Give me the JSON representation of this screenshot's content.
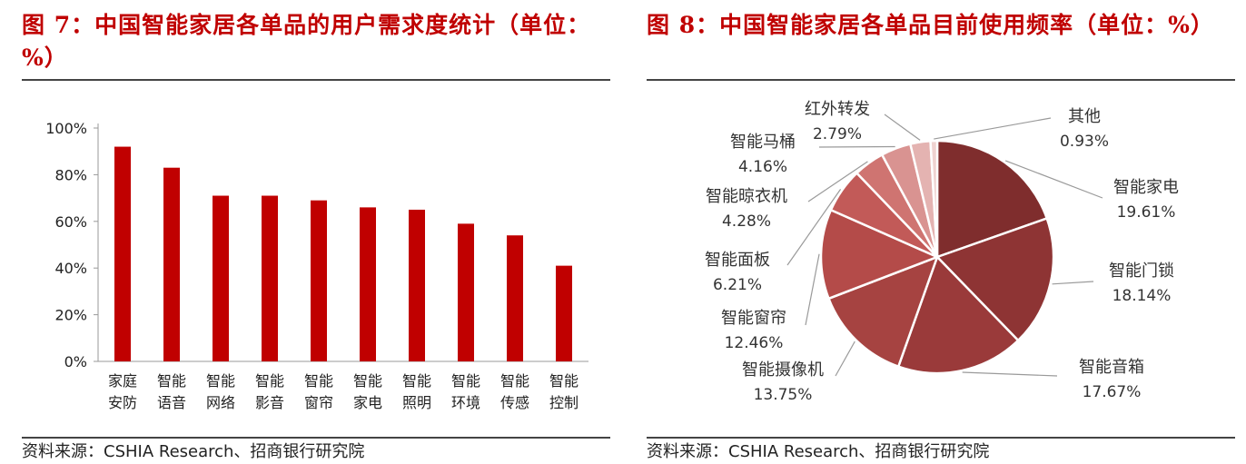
{
  "charts": {
    "left": {
      "title": "图 7：中国智能家居各单品的用户需求度统计（单位：%）",
      "source": "资料来源：CSHIA Research、招商银行研究院"
    },
    "right": {
      "title": "图 8：中国智能家居各单品目前使用频率（单位：%）",
      "source": "资料来源：CSHIA Research、招商银行研究院"
    }
  },
  "chart_data": [
    {
      "type": "bar",
      "title": "图 7：中国智能家居各单品的用户需求度统计（单位：%）",
      "categories": [
        [
          "家庭",
          "安防"
        ],
        [
          "智能",
          "语音"
        ],
        [
          "智能",
          "网络"
        ],
        [
          "智能",
          "影音"
        ],
        [
          "智能",
          "窗帘"
        ],
        [
          "智能",
          "家电"
        ],
        [
          "智能",
          "照明"
        ],
        [
          "智能",
          "环境"
        ],
        [
          "智能",
          "传感"
        ],
        [
          "智能",
          "控制"
        ]
      ],
      "values": [
        92,
        83,
        71,
        71,
        69,
        66,
        65,
        59,
        54,
        41
      ],
      "ylim": [
        0,
        100
      ],
      "yticks": [
        "0%",
        "20%",
        "40%",
        "60%",
        "80%",
        "100%"
      ],
      "ytick_values": [
        0,
        20,
        40,
        60,
        80,
        100
      ],
      "bar_color": "#c00000",
      "grid": false,
      "xlabel": "",
      "ylabel": ""
    },
    {
      "type": "pie",
      "title": "图 8：中国智能家居各单品目前使用频率（单位：%）",
      "slices": [
        {
          "label": "智能家电",
          "value": 19.61,
          "text": "19.61%",
          "color": "#7f2d2d"
        },
        {
          "label": "智能门锁",
          "value": 18.14,
          "text": "18.14%",
          "color": "#8e3434"
        },
        {
          "label": "智能音箱",
          "value": 17.67,
          "text": "17.67%",
          "color": "#9a3a3a"
        },
        {
          "label": "智能摄像机",
          "value": 13.75,
          "text": "13.75%",
          "color": "#a64341"
        },
        {
          "label": "智能窗帘",
          "value": 12.46,
          "text": "12.46%",
          "color": "#b44b49"
        },
        {
          "label": "智能面板",
          "value": 6.21,
          "text": "6.21%",
          "color": "#c25a58"
        },
        {
          "label": "智能晾衣机",
          "value": 4.28,
          "text": "4.28%",
          "color": "#cf7471"
        },
        {
          "label": "智能马桶",
          "value": 4.16,
          "text": "4.16%",
          "color": "#d99391"
        },
        {
          "label": "红外转发",
          "value": 2.79,
          "text": "2.79%",
          "color": "#e4b3b1"
        },
        {
          "label": "其他",
          "value": 0.93,
          "text": "0.93%",
          "color": "#efd2d0"
        }
      ],
      "legend": "none"
    }
  ]
}
